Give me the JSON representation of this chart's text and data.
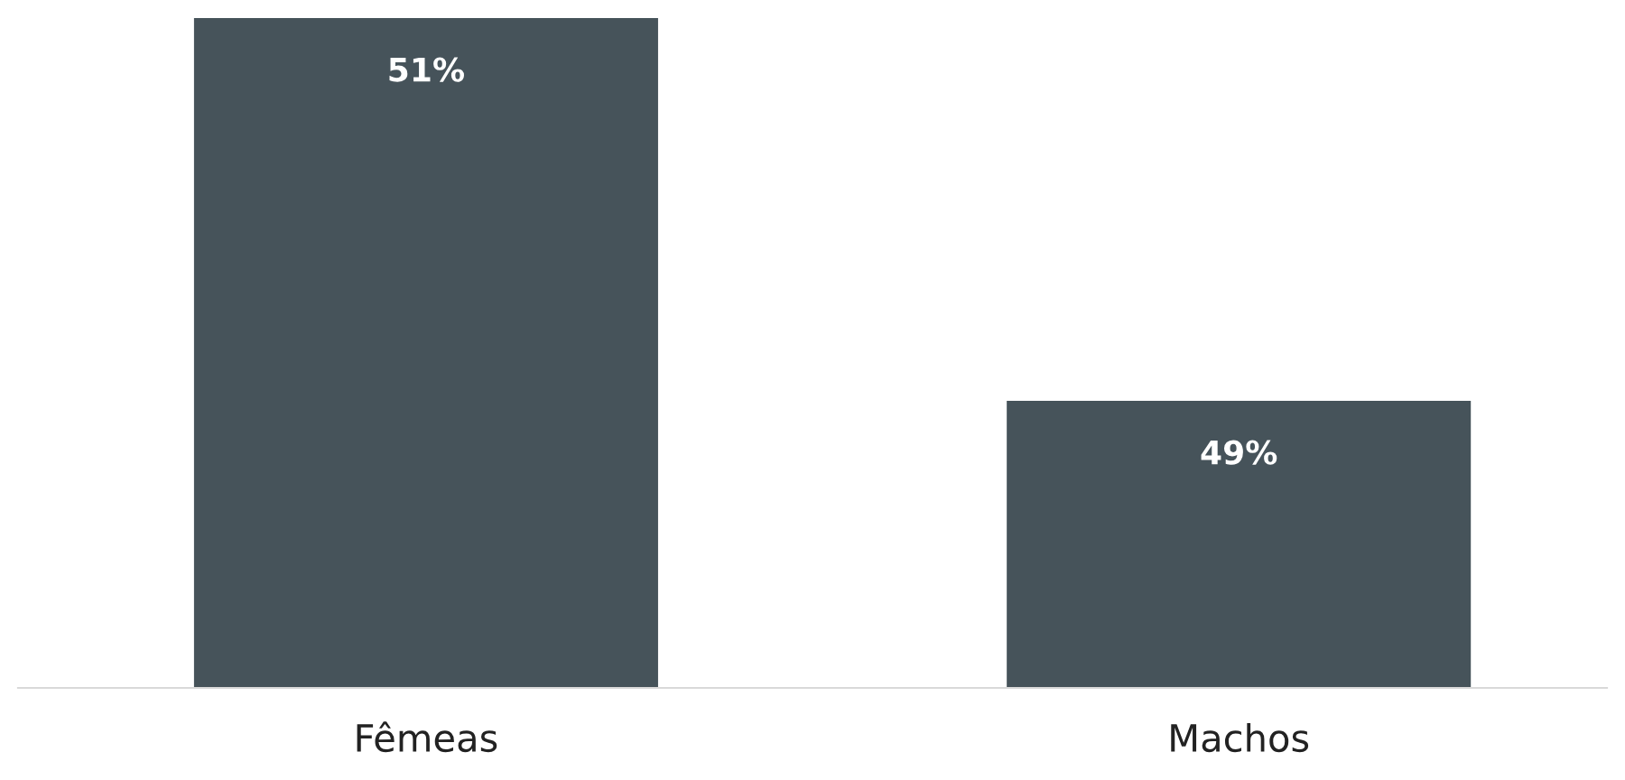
{
  "chart_data": {
    "type": "bar",
    "categories": [
      "Fêmeas",
      "Machos"
    ],
    "values": [
      51,
      49
    ],
    "value_labels": [
      "51%",
      "49%"
    ],
    "color": "#46535a",
    "ylim": [
      47.5,
      51
    ],
    "tick_labels": "x",
    "grid": false,
    "legend": false
  }
}
